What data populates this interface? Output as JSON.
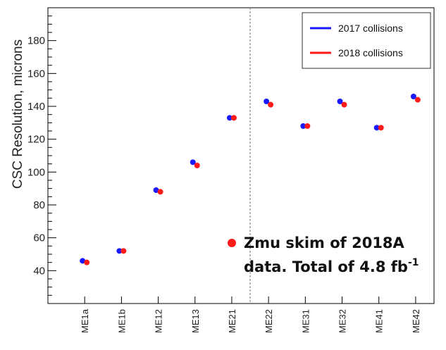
{
  "chart_data": {
    "type": "scatter",
    "ylabel": "CSC  Resolution, microns",
    "ylim": [
      20,
      200
    ],
    "yticks": [
      40,
      60,
      80,
      100,
      120,
      140,
      160,
      180
    ],
    "categories": [
      "ME1a",
      "ME1b",
      "ME12",
      "ME13",
      "ME21",
      "ME22",
      "ME31",
      "ME32",
      "ME41",
      "ME42"
    ],
    "series": [
      {
        "name": "2017 collisions",
        "color": "#1a1aff",
        "values": [
          46,
          52,
          89,
          106,
          133,
          143,
          128,
          143,
          127,
          146
        ]
      },
      {
        "name": "2018 collisions",
        "color": "#ff1a1a",
        "values": [
          45,
          52,
          88,
          104,
          133,
          141,
          128,
          141,
          127,
          144
        ]
      }
    ],
    "divider_after": "ME21",
    "legend_position": "top-right",
    "annotation": {
      "line1": "Zmu skim of 2018A",
      "line2": "data. Total of 4.8 fb",
      "superscript": "-1",
      "marker_color": "#ff1a1a"
    }
  }
}
